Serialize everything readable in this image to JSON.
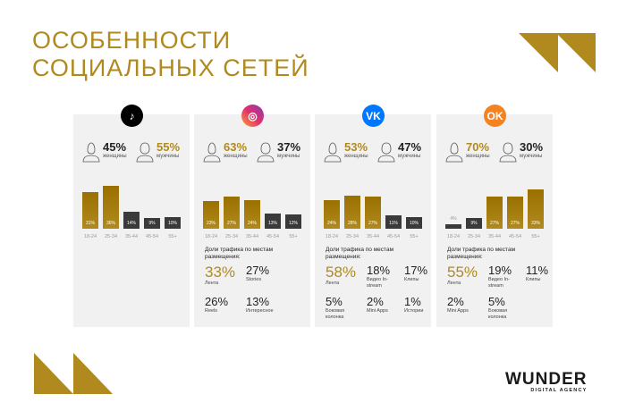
{
  "title_line1": "ОСОБЕННОСТИ",
  "title_line2": "СОЦИАЛЬНЫХ СЕТЕЙ",
  "colors": {
    "gold": "#b08a1e",
    "dark": "#3a3a3a"
  },
  "traffic_title": "Доли трафика по местам размещения:",
  "women_label": "женщины",
  "men_label": "мужчины",
  "ages": [
    "18-24",
    "25-34",
    "35-44",
    "45-54",
    "55+"
  ],
  "networks": [
    {
      "name": "TikTok",
      "icon": "tiktok-icon",
      "women": "45%",
      "men": "55%",
      "leader": "men",
      "bars": [
        31,
        36,
        14,
        9,
        10
      ],
      "bar_labels": [
        "31%",
        "36%",
        "14%",
        "9%",
        "10%"
      ],
      "stats": []
    },
    {
      "name": "Instagram",
      "icon": "instagram-icon",
      "women": "63%",
      "men": "37%",
      "leader": "women",
      "bars": [
        23,
        27,
        24,
        13,
        12
      ],
      "bar_labels": [
        "23%",
        "27%",
        "24%",
        "13%",
        "12%"
      ],
      "stats": [
        {
          "v": "33%",
          "l": "Лента"
        },
        {
          "v": "27%",
          "l": "Stories"
        },
        {
          "v": "26%",
          "l": "Reels"
        },
        {
          "v": "13%",
          "l": "Интересное"
        }
      ]
    },
    {
      "name": "VK",
      "icon": "vk-icon",
      "women": "53%",
      "men": "47%",
      "leader": "women",
      "bars": [
        24,
        28,
        27,
        11,
        10
      ],
      "bar_labels": [
        "24%",
        "28%",
        "27%",
        "11%",
        "10%"
      ],
      "stats": [
        {
          "v": "58%",
          "l": "Лента"
        },
        {
          "v": "18%",
          "l": "Видео In-stream"
        },
        {
          "v": "17%",
          "l": "Клипы"
        },
        {
          "v": "5%",
          "l": "Боковая колонка"
        },
        {
          "v": "2%",
          "l": "Mini Apps"
        },
        {
          "v": "1%",
          "l": "Истории"
        }
      ]
    },
    {
      "name": "Odnoklassniki",
      "icon": "ok-icon",
      "women": "70%",
      "men": "30%",
      "leader": "women",
      "bars": [
        4,
        9,
        27,
        27,
        33
      ],
      "bar_labels": [
        "4%",
        "9%",
        "27%",
        "27%",
        "33%"
      ],
      "stats": [
        {
          "v": "55%",
          "l": "Лента"
        },
        {
          "v": "19%",
          "l": "Видео In-stream"
        },
        {
          "v": "11%",
          "l": "Клипы"
        },
        {
          "v": "2%",
          "l": "Mini Apps"
        },
        {
          "v": "5%",
          "l": "Боковая колонка"
        }
      ]
    }
  ],
  "logo": {
    "word": "WUNDER",
    "sub": "DIGITAL AGENCY"
  }
}
